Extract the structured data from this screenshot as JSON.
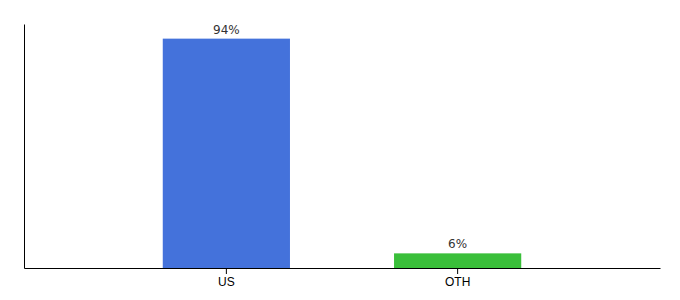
{
  "chart_data": {
    "type": "bar",
    "categories": [
      "US",
      "OTH"
    ],
    "values": [
      94,
      6
    ],
    "value_labels": [
      "94%",
      "6%"
    ],
    "colors": [
      "#4472db",
      "#3abf3a"
    ],
    "ylim": [
      0,
      100
    ],
    "data_labels": true,
    "tick_labels": "x"
  }
}
